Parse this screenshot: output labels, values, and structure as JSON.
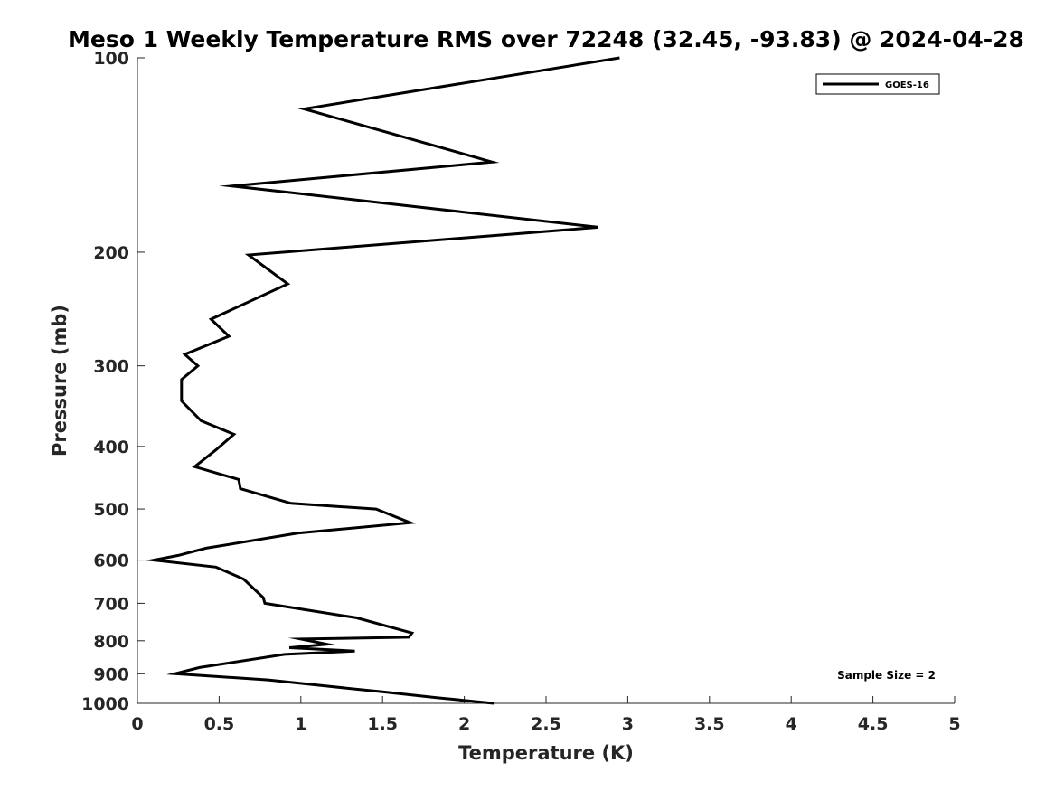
{
  "chart_data": {
    "type": "line",
    "title": "Meso 1 Weekly Temperature RMS over 72248 (32.45, -93.83) @ 2024-04-28",
    "xlabel": "Temperature (K)",
    "ylabel": "Pressure (mb)",
    "xlim": [
      0,
      5
    ],
    "ylim": [
      100,
      1000
    ],
    "y_scale": "log",
    "y_reversed": true,
    "x_ticks": [
      "0",
      "0.5",
      "1",
      "1.5",
      "2",
      "2.5",
      "3",
      "3.5",
      "4",
      "4.5",
      "5"
    ],
    "y_ticks": [
      "100",
      "200",
      "300",
      "400",
      "500",
      "600",
      "700",
      "800",
      "900",
      "1000"
    ],
    "legend_position": "top-right",
    "grid": false,
    "line_color": "#000000",
    "series": [
      {
        "name": "GOES-16",
        "x": [
          2.95,
          1.02,
          2.17,
          0.58,
          2.82,
          0.68,
          0.92,
          0.45,
          0.56,
          0.29,
          0.37,
          0.27,
          0.27,
          0.39,
          0.59,
          0.48,
          0.35,
          0.62,
          0.63,
          0.94,
          1.46,
          1.67,
          0.98,
          0.42,
          0.25,
          0.1,
          0.48,
          0.65,
          0.77,
          0.78,
          1.34,
          1.68,
          1.66,
          1.0,
          1.16,
          0.93,
          1.33,
          0.9,
          0.38,
          0.23,
          0.8,
          1.15,
          1.5,
          1.83,
          2.18
        ],
        "y": [
          100,
          120,
          145,
          158,
          183,
          202,
          224,
          254,
          270,
          288,
          300,
          315,
          340,
          365,
          383,
          405,
          430,
          450,
          465,
          490,
          500,
          525,
          545,
          575,
          590,
          600,
          615,
          642,
          686,
          700,
          737,
          778,
          790,
          795,
          810,
          820,
          830,
          840,
          880,
          900,
          920,
          940,
          960,
          980,
          1000
        ]
      }
    ],
    "annotations": [
      "Sample Size = 2"
    ]
  }
}
